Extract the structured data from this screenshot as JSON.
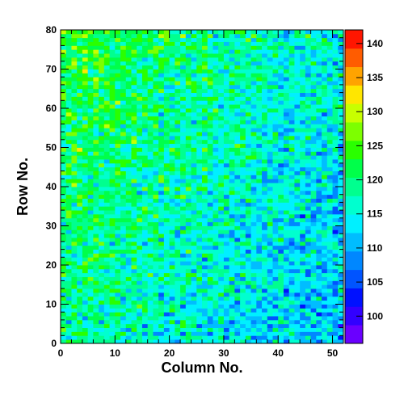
{
  "chart_data": {
    "type": "heatmap",
    "xlabel": "Column No.",
    "ylabel": "Row No.",
    "x_range": [
      0,
      52
    ],
    "y_range": [
      0,
      80
    ],
    "x_ticks": [
      0,
      10,
      20,
      30,
      40,
      50
    ],
    "y_ticks": [
      0,
      10,
      20,
      30,
      40,
      50,
      60,
      70,
      80
    ],
    "n_columns": 52,
    "n_rows": 80,
    "z_range": [
      96,
      142
    ],
    "colorbar_ticks": [
      100,
      105,
      110,
      115,
      120,
      125,
      130,
      135,
      140
    ],
    "palette": [
      "#6a00ff",
      "#3200ff",
      "#0011ff",
      "#0054ff",
      "#0087ff",
      "#00bdff",
      "#00f0ff",
      "#00ffcf",
      "#00ff8f",
      "#00ff4a",
      "#2aff00",
      "#7dff00",
      "#c8ff00",
      "#ffe600",
      "#ffa300",
      "#ff5c00",
      "#ff1600"
    ],
    "value_model": {
      "description": "approximate cell values: smooth trend in column/row plus noise",
      "base": 121,
      "column_slope": -0.16,
      "row_slope": 0.06,
      "noise_amplitude": 6
    }
  }
}
